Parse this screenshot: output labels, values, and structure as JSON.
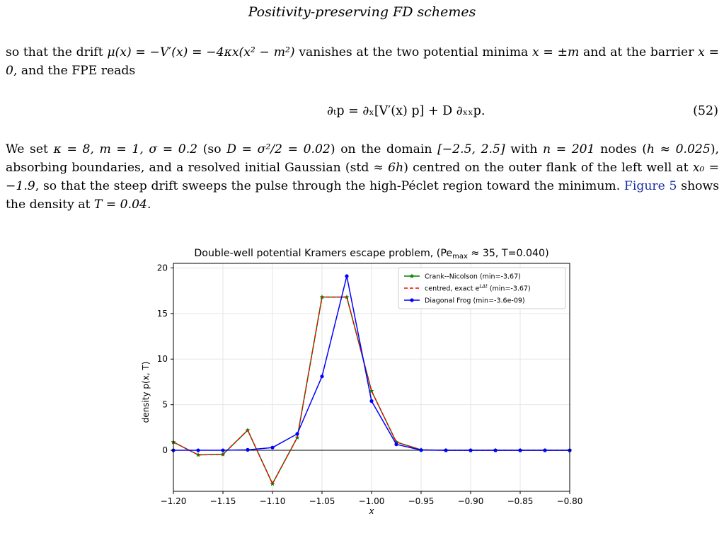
{
  "header": {
    "running_title": "Positivity-preserving FD schemes"
  },
  "paragraph1": {
    "s1": "so that the drift ",
    "m1": "μ(x) = −V′(x) = −4κx(x² − m²)",
    "s2": " vanishes at the two potential minima ",
    "m2": "x = ±m",
    "s3": " and at the barrier ",
    "m3": "x = 0",
    "s4": ", and the FPE reads"
  },
  "equation": {
    "body": "∂ₜp = ∂ₓ[V′(x) p] + D ∂ₓₓp.",
    "number": "(52)"
  },
  "paragraph2": {
    "s1": "We set ",
    "m1": "κ = 8, m = 1, σ = 0.2",
    "s2": " (so ",
    "m2": "D = σ²/2 = 0.02",
    "s3": ") on the domain ",
    "m3": "[−2.5, 2.5]",
    "s4": " with ",
    "m4": "n = 201",
    "s5": " nodes (",
    "m5": "h ≈ 0.025",
    "s6": "), absorbing boundaries, and a resolved initial Gaussian (std ",
    "m6": "≈ 6h",
    "s7": ") centred on the outer flank of the left well at ",
    "m7": "x₀ = −1.9",
    "s8": ", so that the steep drift sweeps the pulse through the high-Péclet region toward the minimum. ",
    "fig_ref": "Figure 5",
    "s9": " shows the density at ",
    "m8": "T = 0.04",
    "s10": "."
  },
  "colors": {
    "cn": "#008000",
    "centred": "#ff0000",
    "frog": "#0000ff",
    "link": "#1a2ea6"
  },
  "chart_data": {
    "type": "line",
    "title": "Double-well potential Kramers escape problem, (Pe_max ≈ 35, T=0.040)",
    "xlabel": "x",
    "ylabel": "density p(x, T)",
    "xlim": [
      -1.2,
      -0.8
    ],
    "ylim": [
      -4.5,
      20.5
    ],
    "xticks": [
      -1.2,
      -1.15,
      -1.1,
      -1.05,
      -1.0,
      -0.95,
      -0.9,
      -0.85,
      -0.8
    ],
    "xtick_labels": [
      "−1.20",
      "−1.15",
      "−1.10",
      "−1.05",
      "−1.00",
      "−0.95",
      "−0.90",
      "−0.85",
      "−0.80"
    ],
    "yticks": [
      0,
      5,
      10,
      15,
      20
    ],
    "ytick_labels": [
      "0",
      "5",
      "10",
      "15",
      "20"
    ],
    "grid": true,
    "legend_position": "top-right",
    "x": [
      -1.2,
      -1.175,
      -1.15,
      -1.125,
      -1.1,
      -1.075,
      -1.05,
      -1.025,
      -1.0,
      -0.975,
      -0.95,
      -0.925,
      -0.9,
      -0.875,
      -0.85,
      -0.825,
      -0.8
    ],
    "series": [
      {
        "name": "Crank--Nicolson (min=-3.67)",
        "color": "#008000",
        "style": "solid",
        "marker": "star",
        "values": [
          0.9,
          -0.5,
          -0.45,
          2.2,
          -3.67,
          1.4,
          16.8,
          16.8,
          6.5,
          0.9,
          0.05,
          0.0,
          0.0,
          0.0,
          0.0,
          0.0,
          0.0
        ]
      },
      {
        "name": "centred, exact e^{LΔt} (min=-3.67)",
        "color": "#ff0000",
        "style": "dashed",
        "marker": "none",
        "values": [
          0.9,
          -0.5,
          -0.45,
          2.2,
          -3.67,
          1.4,
          16.8,
          16.8,
          6.5,
          0.9,
          0.05,
          0.0,
          0.0,
          0.0,
          0.0,
          0.0,
          0.0
        ]
      },
      {
        "name": "Diagonal Frog (min=-3.6e-09)",
        "color": "#0000ff",
        "style": "solid",
        "marker": "circle",
        "values": [
          0.0,
          0.0,
          0.0,
          0.05,
          0.3,
          1.8,
          8.1,
          19.1,
          5.4,
          0.65,
          0.02,
          0.0,
          0.0,
          0.0,
          0.0,
          0.0,
          0.0
        ]
      }
    ]
  }
}
